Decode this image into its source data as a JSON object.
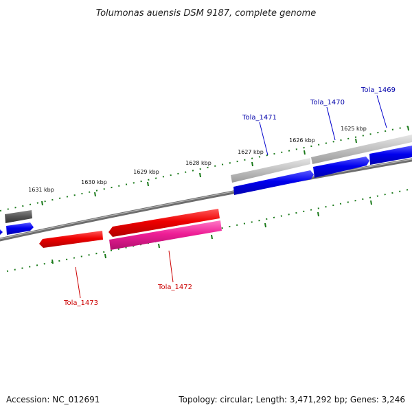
{
  "header": {
    "title": "Tolumonas auensis DSM 9187, complete genome"
  },
  "footer": {
    "accession": "Accession: NC_012691",
    "summary": "Topology: circular; Length: 3,471,292 bp; Genes: 3,246"
  },
  "scale": {
    "ticks": [
      "1625 kbp",
      "1626 kbp",
      "1627 kbp",
      "1628 kbp",
      "1629 kbp",
      "1630 kbp",
      "1631 kbp"
    ]
  },
  "genes": {
    "labels": [
      "Tola_1469",
      "Tola_1470",
      "Tola_1471",
      "Tola_1472",
      "Tola_1473"
    ]
  },
  "colors": {
    "backbone": "#7f7f7f",
    "scale": "#1a7a1a",
    "forward_cds": "#0000ee",
    "forward_gene": "#c0c0c0",
    "reverse_cds": "#ee0000",
    "reverse_pink": "#ee1e96",
    "gray_dark": "#555555",
    "label_forward": "#0000aa",
    "label_reverse": "#cc0000"
  }
}
